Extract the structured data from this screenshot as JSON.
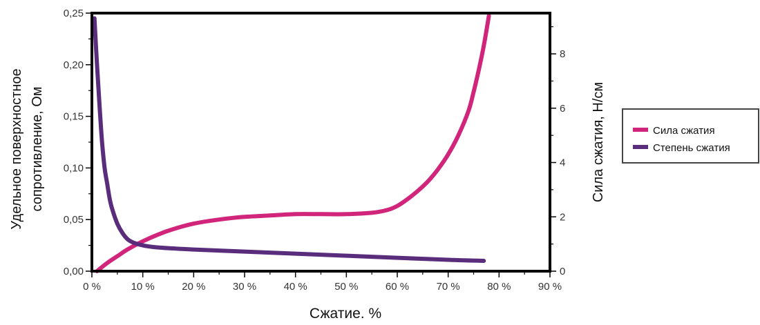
{
  "chart_data": {
    "type": "line",
    "title": "",
    "xlabel": "Сжатие. %",
    "ylabel_left": "Удельное поверхностное сопротивление, Ом",
    "ylabel_left_lines": [
      "Удельное поверхностное",
      "сопротивление, Ом"
    ],
    "ylabel_right": "Сила сжатия, Н/см",
    "xlim": [
      0,
      90
    ],
    "ylim_left": [
      0,
      0.25
    ],
    "ylim_right": [
      0,
      9.5
    ],
    "x_ticks": [
      0,
      10,
      20,
      30,
      40,
      50,
      60,
      70,
      80,
      90
    ],
    "x_tick_labels": [
      "0 %",
      "10 %",
      "20 %",
      "30 %",
      "40 %",
      "50 %",
      "60 %",
      "70 %",
      "80 %",
      "90 %"
    ],
    "y_left_ticks": [
      0,
      0.05,
      0.1,
      0.15,
      0.2,
      0.25
    ],
    "y_left_tick_labels": [
      "0,00",
      "0,05",
      "0,10",
      "0,15",
      "0,20",
      "0,25"
    ],
    "y_right_ticks": [
      0,
      2,
      4,
      6,
      8
    ],
    "y_right_tick_labels": [
      "0",
      "2",
      "4",
      "6",
      "8"
    ],
    "legend_position": "right",
    "series": [
      {
        "name": "Сила сжатия",
        "axis": "right",
        "color": "#d0257a",
        "x": [
          1,
          3,
          5,
          7,
          10,
          13,
          16,
          20,
          25,
          30,
          35,
          40,
          45,
          50,
          55,
          58,
          60,
          62,
          64,
          66,
          68,
          70,
          72,
          74,
          75,
          76,
          77,
          78
        ],
        "y": [
          0.0,
          0.3,
          0.55,
          0.8,
          1.1,
          1.35,
          1.55,
          1.75,
          1.9,
          2.0,
          2.05,
          2.1,
          2.1,
          2.1,
          2.15,
          2.25,
          2.4,
          2.65,
          2.95,
          3.3,
          3.75,
          4.3,
          5.0,
          5.9,
          6.6,
          7.4,
          8.3,
          9.4
        ]
      },
      {
        "name": "Степень сжатия",
        "axis": "left",
        "color": "#5a2d7c",
        "x": [
          0.5,
          1,
          1.5,
          2,
          2.5,
          3,
          3.5,
          4,
          5,
          6,
          7,
          8,
          10,
          13,
          20,
          30,
          40,
          50,
          60,
          70,
          77
        ],
        "y": [
          0.245,
          0.2,
          0.16,
          0.125,
          0.1,
          0.085,
          0.07,
          0.06,
          0.046,
          0.037,
          0.031,
          0.028,
          0.025,
          0.023,
          0.021,
          0.019,
          0.017,
          0.015,
          0.013,
          0.011,
          0.01
        ]
      }
    ]
  }
}
